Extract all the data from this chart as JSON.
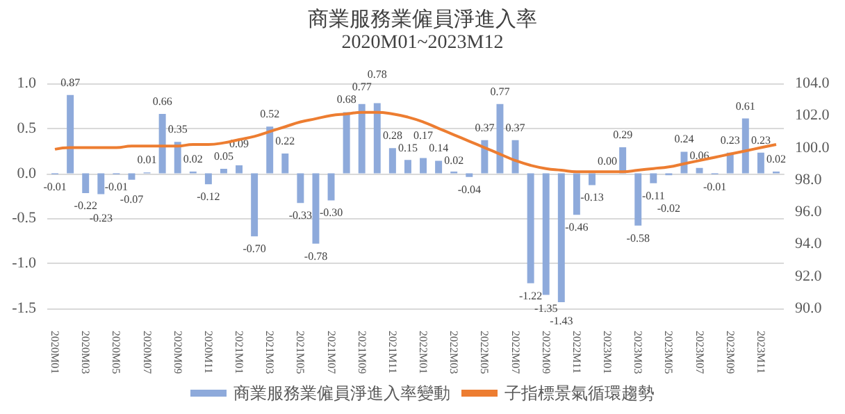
{
  "chart_data": {
    "type": "bar",
    "title": "商業服務業僱員淨進入率",
    "subtitle": "2020M01~2023M12",
    "categories": [
      "2020M01",
      null,
      "2020M03",
      null,
      "2020M05",
      null,
      "2020M07",
      null,
      "2020M09",
      null,
      "2020M11",
      null,
      "2021M01",
      null,
      "2021M03",
      null,
      "2021M05",
      null,
      "2021M07",
      null,
      "2021M09",
      null,
      "2021M11",
      null,
      "2022M01",
      null,
      "2022M03",
      null,
      "2022M05",
      null,
      "2022M07",
      null,
      "2022M09",
      null,
      "2022M11",
      null,
      "2023M01",
      null,
      "2023M03",
      null,
      "2023M05",
      null,
      "2023M07",
      null,
      "2023M09",
      null,
      "2023M11",
      null
    ],
    "series": [
      {
        "name": "商業服務業僱員淨進入率變動",
        "color": "#8eaadb",
        "value_labels": [
          "-0.01",
          "0.87",
          "-0.22",
          "-0.23",
          "-0.01",
          "-0.07",
          "0.01",
          "0.66",
          "0.35",
          "0.02",
          "-0.12",
          "0.05",
          "0.09",
          "-0.70",
          "0.52",
          "0.22",
          "-0.33",
          "-0.78",
          "-0.30",
          "0.68",
          "0.77",
          "0.78",
          "0.28",
          "0.15",
          "0.17",
          "0.14",
          "0.02",
          "-0.04",
          "0.37",
          "0.77",
          "0.37",
          "-1.22",
          "-1.35",
          "-1.43",
          "-0.46",
          "-0.13",
          "0.00",
          "0.29",
          "-0.58",
          "-0.11",
          "-0.02",
          "0.24",
          "0.06",
          "-0.01",
          "0.23",
          "0.61",
          "0.23",
          "0.02"
        ],
        "values": [
          -0.01,
          0.87,
          -0.22,
          -0.23,
          -0.01,
          -0.07,
          0.01,
          0.66,
          0.35,
          0.02,
          -0.12,
          0.05,
          0.09,
          -0.7,
          0.52,
          0.22,
          -0.33,
          -0.78,
          -0.3,
          0.68,
          0.77,
          0.78,
          0.28,
          0.15,
          0.17,
          0.14,
          0.02,
          -0.04,
          0.37,
          0.77,
          0.37,
          -1.22,
          -1.35,
          -1.43,
          -0.46,
          -0.13,
          0.0,
          0.29,
          -0.58,
          -0.11,
          -0.02,
          0.24,
          0.06,
          -0.01,
          0.23,
          0.61,
          0.23,
          0.02
        ]
      },
      {
        "name": "子指標景氣循環趨勢",
        "type": "line",
        "axis": "y2",
        "color": "#ed7d31",
        "values": [
          99.9,
          100.0,
          100.0,
          100.0,
          100.0,
          100.1,
          100.1,
          100.1,
          100.1,
          100.2,
          100.2,
          100.3,
          100.5,
          100.7,
          101.0,
          101.3,
          101.6,
          101.8,
          102.0,
          102.1,
          102.2,
          102.2,
          102.1,
          101.9,
          101.6,
          101.2,
          100.8,
          100.4,
          100.0,
          99.6,
          99.2,
          98.9,
          98.7,
          98.6,
          98.5,
          98.5,
          98.5,
          98.5,
          98.6,
          98.7,
          98.8,
          99.0,
          99.2,
          99.4,
          99.6,
          99.8,
          100.0,
          100.2
        ]
      }
    ],
    "ylim": [
      -1.5,
      1.0
    ],
    "yticks": [
      {
        "value": -1.5,
        "label": "-1.5"
      },
      {
        "value": -1.0,
        "label": "-1.0"
      },
      {
        "value": -0.5,
        "label": "-0.5"
      },
      {
        "value": 0,
        "label": "0.0"
      },
      {
        "value": 0.5,
        "label": "0.5"
      },
      {
        "value": 1.0,
        "label": "1.0"
      }
    ],
    "y2lim": [
      90,
      104
    ],
    "y2ticks": [
      {
        "value": 90,
        "label": "90.0"
      },
      {
        "value": 92,
        "label": "92.0"
      },
      {
        "value": 94,
        "label": "94.0"
      },
      {
        "value": 96,
        "label": "96.0"
      },
      {
        "value": 98,
        "label": "98.0"
      },
      {
        "value": 100,
        "label": "100.0"
      },
      {
        "value": 102,
        "label": "102.0"
      },
      {
        "value": 104,
        "label": "104.0"
      }
    ],
    "grid": "y",
    "legend": "bottom",
    "marker": "none"
  }
}
